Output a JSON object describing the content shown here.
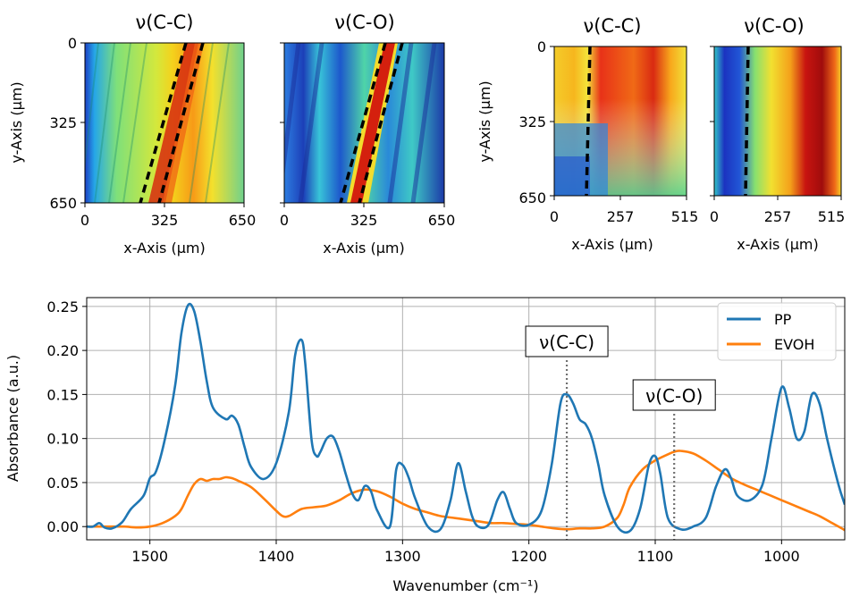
{
  "chart_data": [
    {
      "type": "heatmap",
      "title": "ν(C-C)",
      "xlabel": "x-Axis (μm)",
      "ylabel": "y-Axis (μm)",
      "xlim": [
        0,
        650
      ],
      "ylim": [
        0,
        650
      ],
      "xticks": [
        "0",
        "325",
        "650"
      ],
      "yticks": [
        "0",
        "325",
        "650"
      ],
      "colormap": "jet"
    },
    {
      "type": "heatmap",
      "title": "ν(C-O)",
      "xlabel": "x-Axis (μm)",
      "ylabel": "",
      "xlim": [
        0,
        650
      ],
      "ylim": [
        0,
        650
      ],
      "xticks": [
        "0",
        "325",
        "650"
      ],
      "yticks": [],
      "colormap": "jet"
    },
    {
      "type": "heatmap",
      "title": "ν(C-C)",
      "xlabel": "x-Axis (μm)",
      "ylabel": "y-Axis (μm)",
      "xlim": [
        0,
        515
      ],
      "ylim": [
        0,
        650
      ],
      "xticks": [
        "0",
        "257",
        "515"
      ],
      "yticks": [
        "0",
        "325",
        "650"
      ],
      "colormap": "jet"
    },
    {
      "type": "heatmap",
      "title": "ν(C-O)",
      "xlabel": "x-Axis (μm)",
      "ylabel": "",
      "xlim": [
        0,
        515
      ],
      "ylim": [
        0,
        650
      ],
      "xticks": [
        "0",
        "257",
        "515"
      ],
      "yticks": [],
      "colormap": "jet"
    },
    {
      "type": "line",
      "xlabel": "Wavenumber (cm⁻¹)",
      "ylabel": "Absorbance (a.u.)",
      "xlim": [
        1550,
        950
      ],
      "ylim": [
        -0.015,
        0.26
      ],
      "x_reversed": true,
      "grid": true,
      "legend": "top-right",
      "xticks": [
        1500,
        1400,
        1300,
        1200,
        1100,
        1000
      ],
      "yticks": [
        0.0,
        0.05,
        0.1,
        0.15,
        0.2,
        0.25
      ],
      "ytick_labels": [
        "0.00",
        "0.05",
        "0.10",
        "0.15",
        "0.20",
        "0.25"
      ],
      "series": [
        {
          "name": "PP",
          "color": "#1f77b4",
          "x": [
            1550,
            1545,
            1540,
            1536,
            1530,
            1522,
            1515,
            1505,
            1500,
            1495,
            1488,
            1480,
            1475,
            1470,
            1465,
            1460,
            1455,
            1450,
            1440,
            1435,
            1430,
            1425,
            1420,
            1410,
            1400,
            1390,
            1385,
            1380,
            1377,
            1372,
            1368,
            1365,
            1360,
            1355,
            1350,
            1345,
            1340,
            1335,
            1330,
            1325,
            1320,
            1310,
            1305,
            1300,
            1295,
            1290,
            1280,
            1270,
            1262,
            1256,
            1250,
            1245,
            1240,
            1232,
            1225,
            1220,
            1215,
            1210,
            1200,
            1190,
            1182,
            1175,
            1170,
            1165,
            1160,
            1155,
            1150,
            1145,
            1140,
            1130,
            1120,
            1112,
            1105,
            1100,
            1096,
            1090,
            1080,
            1070,
            1060,
            1052,
            1045,
            1040,
            1035,
            1025,
            1015,
            1008,
            1000,
            994,
            988,
            982,
            976,
            970,
            964,
            955,
            950
          ],
          "y": [
            0.0,
            0.0,
            0.004,
            -0.001,
            -0.002,
            0.005,
            0.02,
            0.035,
            0.055,
            0.063,
            0.1,
            0.16,
            0.22,
            0.251,
            0.245,
            0.21,
            0.165,
            0.135,
            0.122,
            0.126,
            0.116,
            0.09,
            0.068,
            0.054,
            0.072,
            0.13,
            0.195,
            0.212,
            0.185,
            0.098,
            0.08,
            0.085,
            0.1,
            0.102,
            0.085,
            0.06,
            0.038,
            0.03,
            0.046,
            0.04,
            0.018,
            0.0,
            0.065,
            0.07,
            0.055,
            0.032,
            0.0,
            -0.003,
            0.03,
            0.072,
            0.04,
            0.012,
            0.0,
            0.002,
            0.03,
            0.039,
            0.02,
            0.004,
            0.002,
            0.018,
            0.07,
            0.14,
            0.15,
            0.14,
            0.122,
            0.116,
            0.1,
            0.07,
            0.035,
            0.0,
            -0.005,
            0.02,
            0.07,
            0.08,
            0.06,
            0.01,
            -0.003,
            0.0,
            0.01,
            0.045,
            0.065,
            0.055,
            0.035,
            0.03,
            0.048,
            0.1,
            0.158,
            0.135,
            0.1,
            0.108,
            0.15,
            0.14,
            0.1,
            0.048,
            0.025
          ]
        },
        {
          "name": "EVOH",
          "color": "#ff7f0e",
          "x": [
            1550,
            1540,
            1530,
            1520,
            1510,
            1500,
            1490,
            1480,
            1475,
            1470,
            1465,
            1460,
            1455,
            1450,
            1445,
            1440,
            1435,
            1430,
            1420,
            1410,
            1400,
            1395,
            1390,
            1380,
            1370,
            1360,
            1350,
            1340,
            1330,
            1320,
            1310,
            1300,
            1290,
            1280,
            1270,
            1260,
            1250,
            1240,
            1230,
            1220,
            1210,
            1200,
            1190,
            1180,
            1170,
            1160,
            1150,
            1140,
            1130,
            1125,
            1120,
            1110,
            1100,
            1090,
            1085,
            1080,
            1070,
            1060,
            1050,
            1040,
            1030,
            1020,
            1010,
            1000,
            990,
            980,
            970,
            960,
            950
          ],
          "y": [
            0.0,
            0.0,
            0.0,
            0.0,
            -0.001,
            0.0,
            0.004,
            0.012,
            0.02,
            0.035,
            0.048,
            0.054,
            0.052,
            0.054,
            0.054,
            0.056,
            0.055,
            0.052,
            0.045,
            0.032,
            0.018,
            0.012,
            0.012,
            0.02,
            0.022,
            0.024,
            0.03,
            0.038,
            0.042,
            0.04,
            0.034,
            0.026,
            0.02,
            0.016,
            0.012,
            0.01,
            0.008,
            0.006,
            0.004,
            0.004,
            0.003,
            0.002,
            0.0,
            -0.002,
            -0.003,
            -0.002,
            -0.002,
            0.0,
            0.01,
            0.025,
            0.045,
            0.065,
            0.075,
            0.082,
            0.085,
            0.086,
            0.083,
            0.075,
            0.065,
            0.055,
            0.048,
            0.042,
            0.036,
            0.03,
            0.024,
            0.018,
            0.012,
            0.004,
            -0.004
          ]
        }
      ],
      "annotations": [
        {
          "text": "ν(C-C)",
          "x": 1170
        },
        {
          "text": "ν(C-O)",
          "x": 1085
        }
      ]
    }
  ]
}
